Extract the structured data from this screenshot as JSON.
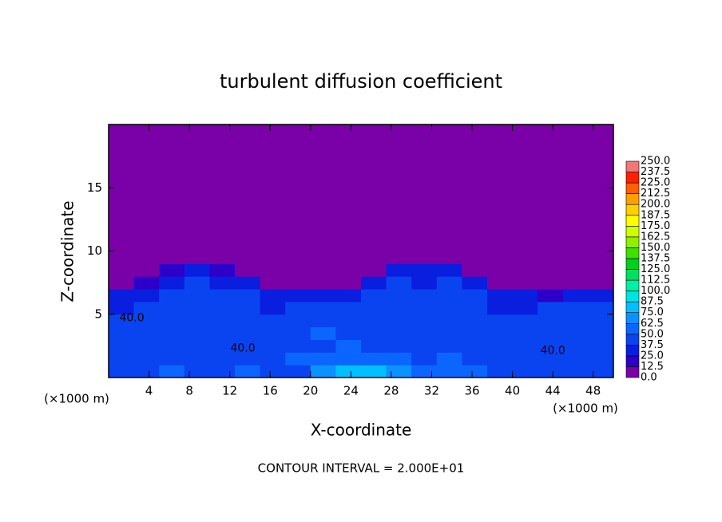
{
  "chart_data": {
    "type": "contour",
    "title": "turbulent diffusion coefficient",
    "xlabel": "X-coordinate",
    "ylabel": "Z-coordinate",
    "x_unit_left": "(×1000 m)",
    "x_unit_right": "(×1000 m)",
    "footnote": "CONTOUR INTERVAL = 2.000E+01",
    "xlim": [
      0,
      50
    ],
    "ylim": [
      0,
      20
    ],
    "xticks": [
      4,
      8,
      12,
      16,
      20,
      24,
      28,
      32,
      36,
      40,
      44,
      48
    ],
    "yticks": [
      5,
      10,
      15
    ],
    "x_edges": [
      0,
      2.5,
      5,
      7.5,
      10,
      12.5,
      15,
      17.5,
      20,
      22.5,
      25,
      27.5,
      30,
      32.5,
      35,
      37.5,
      40,
      42.5,
      45,
      47.5,
      50
    ],
    "z_edges": [
      0,
      1,
      2,
      3,
      4,
      5,
      6,
      7,
      8,
      9,
      10,
      20
    ],
    "values": [
      [
        40,
        45,
        50,
        40,
        45,
        55,
        40,
        45,
        65,
        80,
        75,
        70,
        60,
        55,
        50,
        45,
        40,
        45,
        40,
        45
      ],
      [
        45,
        40,
        45,
        45,
        40,
        40,
        45,
        50,
        55,
        60,
        50,
        50,
        45,
        50,
        45,
        40,
        45,
        45,
        40,
        40
      ],
      [
        40,
        45,
        40,
        45,
        40,
        40,
        45,
        40,
        45,
        55,
        45,
        40,
        45,
        40,
        45,
        45,
        40,
        45,
        40,
        40
      ],
      [
        45,
        40,
        45,
        40,
        40,
        45,
        40,
        45,
        50,
        40,
        45,
        40,
        40,
        45,
        40,
        40,
        45,
        40,
        40,
        45
      ],
      [
        40,
        45,
        45,
        40,
        45,
        40,
        40,
        45,
        40,
        45,
        40,
        40,
        45,
        40,
        40,
        45,
        40,
        45,
        40,
        45
      ],
      [
        35,
        40,
        45,
        45,
        40,
        45,
        35,
        40,
        45,
        40,
        40,
        45,
        45,
        40,
        40,
        35,
        30,
        40,
        45,
        40
      ],
      [
        25,
        30,
        40,
        45,
        40,
        45,
        30,
        35,
        30,
        35,
        40,
        45,
        40,
        45,
        40,
        30,
        25,
        20,
        35,
        30
      ],
      [
        0,
        15,
        35,
        40,
        35,
        30,
        0,
        10,
        5,
        10,
        30,
        40,
        35,
        40,
        30,
        5,
        0,
        0,
        10,
        10
      ],
      [
        0,
        0,
        20,
        30,
        20,
        10,
        0,
        0,
        0,
        0,
        5,
        25,
        30,
        25,
        10,
        0,
        0,
        0,
        0,
        0
      ],
      [
        0,
        0,
        0,
        5,
        0,
        0,
        0,
        0,
        0,
        0,
        0,
        0,
        5,
        0,
        0,
        0,
        0,
        0,
        0,
        0
      ],
      [
        0,
        0,
        0,
        0,
        0,
        0,
        0,
        0,
        0,
        0,
        0,
        0,
        0,
        0,
        0,
        0,
        0,
        0,
        0,
        0
      ]
    ],
    "contour_labels": [
      {
        "text": "40.0",
        "x": 2.3,
        "y": 4.7
      },
      {
        "text": "40.0",
        "x": 13.3,
        "y": 2.3
      },
      {
        "text": "40.0",
        "x": 44,
        "y": 2.1
      }
    ],
    "levels": [
      {
        "value": 0,
        "label": "0.0"
      },
      12.5,
      {
        "value": 25,
        "label": "25.0"
      },
      37.5,
      {
        "value": 50,
        "label": "50.0"
      },
      62.5,
      {
        "value": 75,
        "label": "75.0"
      },
      87.5,
      {
        "value": 100,
        "label": "100.0"
      },
      112.5,
      {
        "value": 125,
        "label": "125.0"
      },
      137.5,
      {
        "value": 150,
        "label": "150.0"
      },
      162.5,
      {
        "value": 175,
        "label": "175.0"
      },
      187.5,
      {
        "value": 200,
        "label": "200.0"
      },
      212.5,
      {
        "value": 225,
        "label": "225.0"
      },
      237.5,
      {
        "value": 250,
        "label": "250.0"
      }
    ],
    "colors": [
      "#7a00a8",
      "#2c00c8",
      "#0a1ee0",
      "#0a44f0",
      "#0a66ff",
      "#0a92ff",
      "#00c0ff",
      "#00e4e0",
      "#00f0a8",
      "#00e060",
      "#00d020",
      "#40e000",
      "#90f000",
      "#d0ff00",
      "#ffff00",
      "#ffd000",
      "#ffa000",
      "#ff6000",
      "#ff2000",
      "#f07878"
    ]
  }
}
